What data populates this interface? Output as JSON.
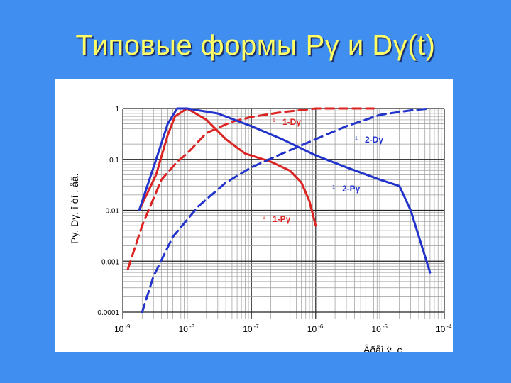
{
  "slide": {
    "title": "Типовые формы Pγ и Dγ(t)",
    "background_color": "#3f8ef0",
    "title_color": "#ffff66"
  },
  "chart_data": {
    "type": "line",
    "x_scale": "log",
    "y_scale": "log",
    "xlim": [
      1e-09,
      0.0001
    ],
    "ylim": [
      0.0001,
      1
    ],
    "x_tick_labels": [
      {
        "base": "10",
        "exp": "-9",
        "value": 1e-09
      },
      {
        "base": "10",
        "exp": "-8",
        "value": 1e-08
      },
      {
        "base": "10",
        "exp": "-7",
        "value": 1e-07
      },
      {
        "base": "10",
        "exp": "-6",
        "value": 1e-06
      },
      {
        "base": "10",
        "exp": "-5",
        "value": 1e-05
      },
      {
        "base": "10",
        "exp": "-4",
        "value": 0.0001
      }
    ],
    "y_tick_labels": [
      {
        "label": "1",
        "value": 1
      },
      {
        "label": "0.1",
        "value": 0.1
      },
      {
        "label": "0.01",
        "value": 0.01
      },
      {
        "label": "0.001",
        "value": 0.001
      },
      {
        "label": "0.0001",
        "value": 0.0001
      }
    ],
    "ylabel": "Pγ, Dγ, î òí . åä.",
    "xlabel": "Âðåì ÿ, c",
    "grid": true,
    "series": [
      {
        "name": "1-Pγ",
        "color": "#dd2222",
        "dash": false,
        "points": [
          [
            1.8e-09,
            0.01
          ],
          [
            3.3e-09,
            0.05
          ],
          [
            5e-09,
            0.3
          ],
          [
            6.5e-09,
            0.7
          ],
          [
            1e-08,
            1
          ],
          [
            2e-08,
            0.6
          ],
          [
            4e-08,
            0.25
          ],
          [
            8e-08,
            0.13
          ],
          [
            2e-07,
            0.09
          ],
          [
            4e-07,
            0.06
          ],
          [
            6e-07,
            0.035
          ],
          [
            8e-07,
            0.015
          ],
          [
            1e-06,
            0.005
          ]
        ]
      },
      {
        "name": "1-Dγ",
        "color": "#dd2222",
        "dash": true,
        "points": [
          [
            1.2e-09,
            0.0007
          ],
          [
            2e-09,
            0.005
          ],
          [
            4e-09,
            0.04
          ],
          [
            7e-09,
            0.09
          ],
          [
            1e-08,
            0.13
          ],
          [
            2e-08,
            0.33
          ],
          [
            5e-08,
            0.55
          ],
          [
            1e-07,
            0.68
          ],
          [
            3e-07,
            0.85
          ],
          [
            1e-06,
            1
          ],
          [
            3e-06,
            1
          ],
          [
            8e-06,
            1
          ]
        ]
      },
      {
        "name": "2-Pγ",
        "color": "#2233cc",
        "dash": false,
        "points": [
          [
            1.8e-09,
            0.01
          ],
          [
            3.3e-09,
            0.1
          ],
          [
            5e-09,
            0.5
          ],
          [
            7e-09,
            1
          ],
          [
            1e-08,
            1
          ],
          [
            3e-08,
            0.8
          ],
          [
            1e-07,
            0.45
          ],
          [
            3e-07,
            0.25
          ],
          [
            1e-06,
            0.12
          ],
          [
            3e-06,
            0.07
          ],
          [
            1e-05,
            0.04
          ],
          [
            2e-05,
            0.03
          ],
          [
            3e-05,
            0.01
          ],
          [
            6e-05,
            0.0006
          ]
        ]
      },
      {
        "name": "2-Dγ",
        "color": "#2233cc",
        "dash": true,
        "points": [
          [
            2e-09,
            0.0001
          ],
          [
            3e-09,
            0.0005
          ],
          [
            6e-09,
            0.003
          ],
          [
            1.5e-08,
            0.012
          ],
          [
            4e-08,
            0.035
          ],
          [
            1e-07,
            0.07
          ],
          [
            3e-07,
            0.13
          ],
          [
            1e-06,
            0.25
          ],
          [
            3e-06,
            0.45
          ],
          [
            1e-05,
            0.75
          ],
          [
            3e-05,
            0.92
          ],
          [
            6e-05,
            1
          ]
        ]
      }
    ],
    "annotations": [
      {
        "marker": "1",
        "text": "1-Dγ",
        "color": "#dd2222"
      },
      {
        "marker": "1",
        "text": "2-Dγ",
        "color": "#2233cc"
      },
      {
        "marker": "1",
        "text": "2-Pγ",
        "color": "#2233cc"
      },
      {
        "marker": "1",
        "text": "1-Pγ",
        "color": "#dd2222"
      }
    ]
  }
}
